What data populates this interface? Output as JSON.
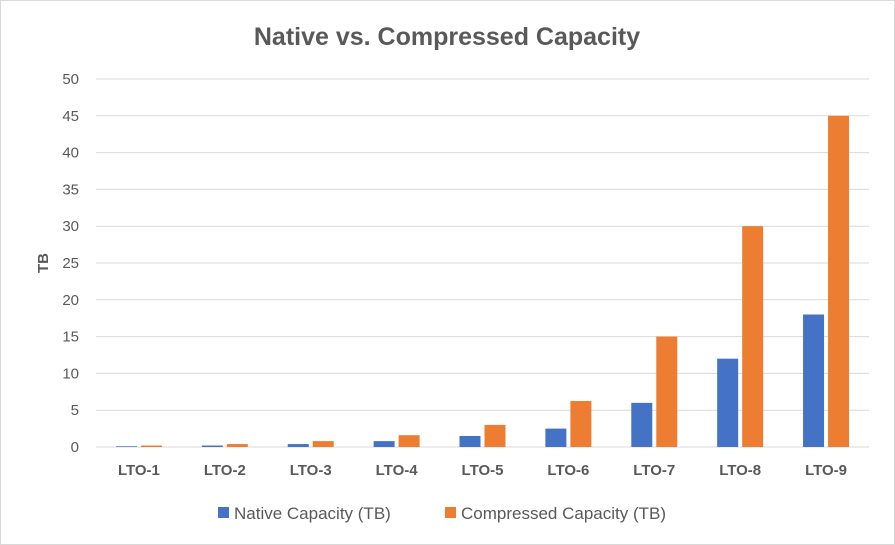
{
  "chart_data": {
    "type": "bar",
    "title": "Native vs. Compressed Capacity",
    "xlabel": "",
    "ylabel": "TB",
    "ylim": [
      0,
      50
    ],
    "yticks": [
      0,
      5,
      10,
      15,
      20,
      25,
      30,
      35,
      40,
      45,
      50
    ],
    "categories": [
      "LTO-1",
      "LTO-2",
      "LTO-3",
      "LTO-4",
      "LTO-5",
      "LTO-6",
      "LTO-7",
      "LTO-8",
      "LTO-9"
    ],
    "series": [
      {
        "name": "Native Capacity (TB)",
        "color": "#4472c4",
        "values": [
          0.1,
          0.2,
          0.4,
          0.8,
          1.5,
          2.5,
          6,
          12,
          18
        ]
      },
      {
        "name": "Compressed Capacity (TB)",
        "color": "#ed7d31",
        "values": [
          0.2,
          0.4,
          0.8,
          1.6,
          3,
          6.25,
          15,
          30,
          45
        ]
      }
    ],
    "grid": true,
    "legend": "bottom"
  }
}
